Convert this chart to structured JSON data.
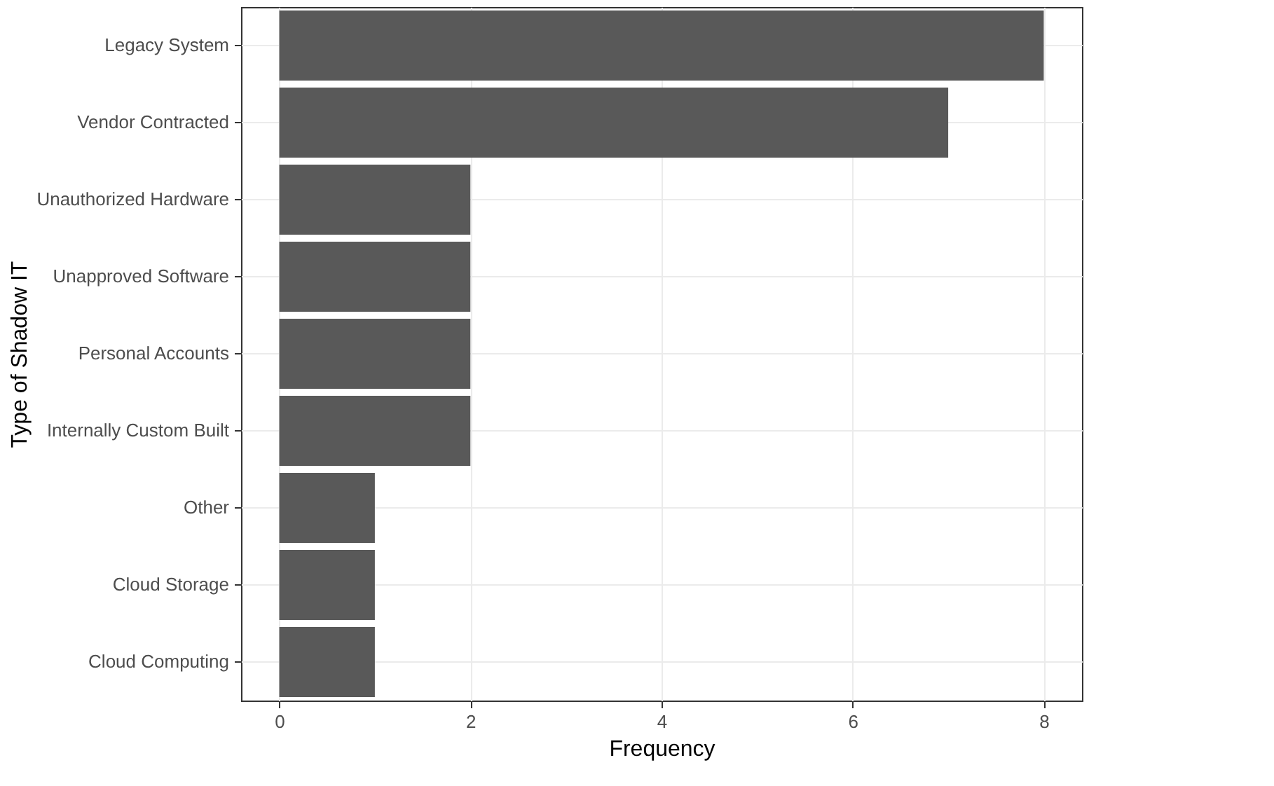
{
  "chart_data": {
    "type": "bar",
    "orientation": "horizontal",
    "xlabel": "Frequency",
    "ylabel": "Type of Shadow IT",
    "categories": [
      "Legacy System",
      "Vendor Contracted",
      "Unauthorized Hardware",
      "Unapproved Software",
      "Personal Accounts",
      "Internally Custom Built",
      "Other",
      "Cloud Storage",
      "Cloud Computing"
    ],
    "values": [
      8,
      7,
      2,
      2,
      2,
      2,
      1,
      1,
      1
    ],
    "color": "#595959",
    "xlim": [
      -0.4,
      8.4
    ],
    "xticks": [
      0,
      2,
      4,
      6,
      8
    ],
    "grid": true
  }
}
